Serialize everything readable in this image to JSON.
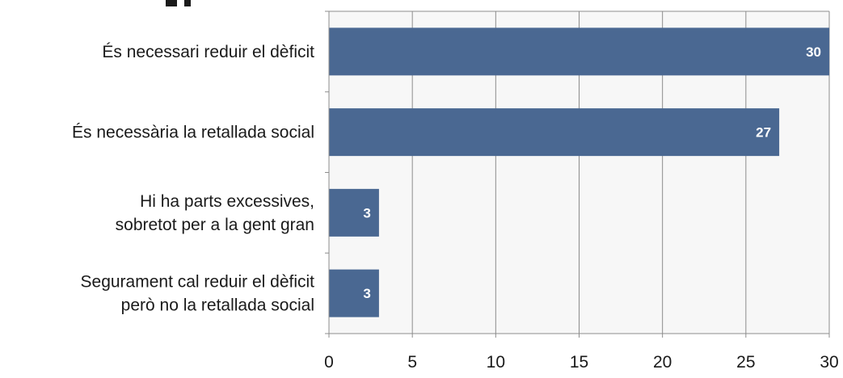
{
  "chart_data": {
    "type": "bar",
    "orientation": "horizontal",
    "categories": [
      "És necessari reduir el dèficit",
      "És necessària la retallada social",
      "Hi ha parts excessives, sobretot per a la gent gran",
      "Segurament cal reduir el dèficit però no la retallada social"
    ],
    "category_lines": [
      [
        "És necessari reduir el dèficit"
      ],
      [
        "És necessària la retallada social"
      ],
      [
        "Hi ha parts excessives,",
        "sobretot per a la gent gran"
      ],
      [
        "Segurament cal reduir el dèficit",
        "però no la retallada social"
      ]
    ],
    "values": [
      30,
      27,
      3,
      3
    ],
    "data_labels": [
      "30",
      "27",
      "3",
      "3"
    ],
    "xlim": [
      0,
      30
    ],
    "xticks": [
      0,
      5,
      10,
      15,
      20,
      25,
      30
    ],
    "xtick_labels": [
      "0",
      "5",
      "10",
      "15",
      "20",
      "25",
      "30"
    ],
    "grid": true,
    "legend": "none",
    "colors": {
      "bar": "#4a6892",
      "plot_background": "#f7f7f7",
      "grid": "#8c8c8c",
      "data_label": "#ffffff"
    }
  }
}
